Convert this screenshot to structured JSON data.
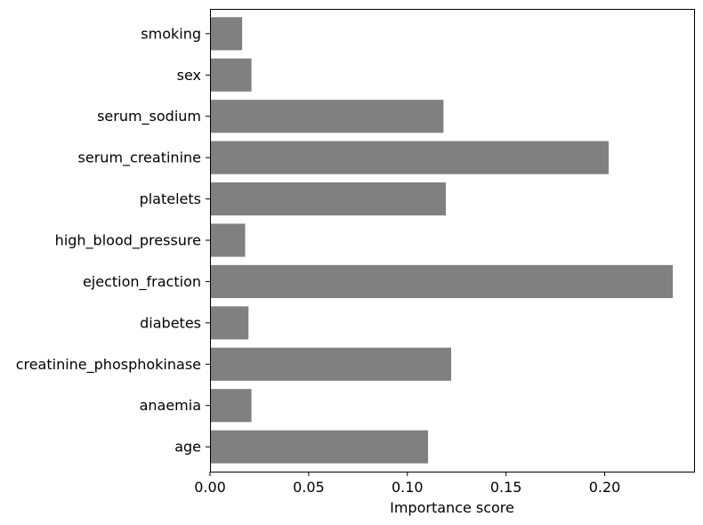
{
  "chart_data": {
    "type": "bar",
    "orientation": "horizontal",
    "categories": [
      "age",
      "anaemia",
      "creatinine_phosphokinase",
      "diabetes",
      "ejection_fraction",
      "high_blood_pressure",
      "platelets",
      "serum_creatinine",
      "serum_sodium",
      "sex",
      "smoking"
    ],
    "values": [
      0.1105,
      0.021,
      0.1222,
      0.0195,
      0.2345,
      0.0178,
      0.1195,
      0.202,
      0.1183,
      0.021,
      0.0163
    ],
    "title": "",
    "xlabel": "Importance score",
    "ylabel": "",
    "xlim": [
      0,
      0.2453
    ],
    "xticks": [
      0.0,
      0.05,
      0.1,
      0.15,
      0.2
    ],
    "xtick_labels": [
      "0.00",
      "0.05",
      "0.10",
      "0.15",
      "0.20"
    ],
    "bar_color": "#808080",
    "grid": false,
    "legend": "none"
  }
}
